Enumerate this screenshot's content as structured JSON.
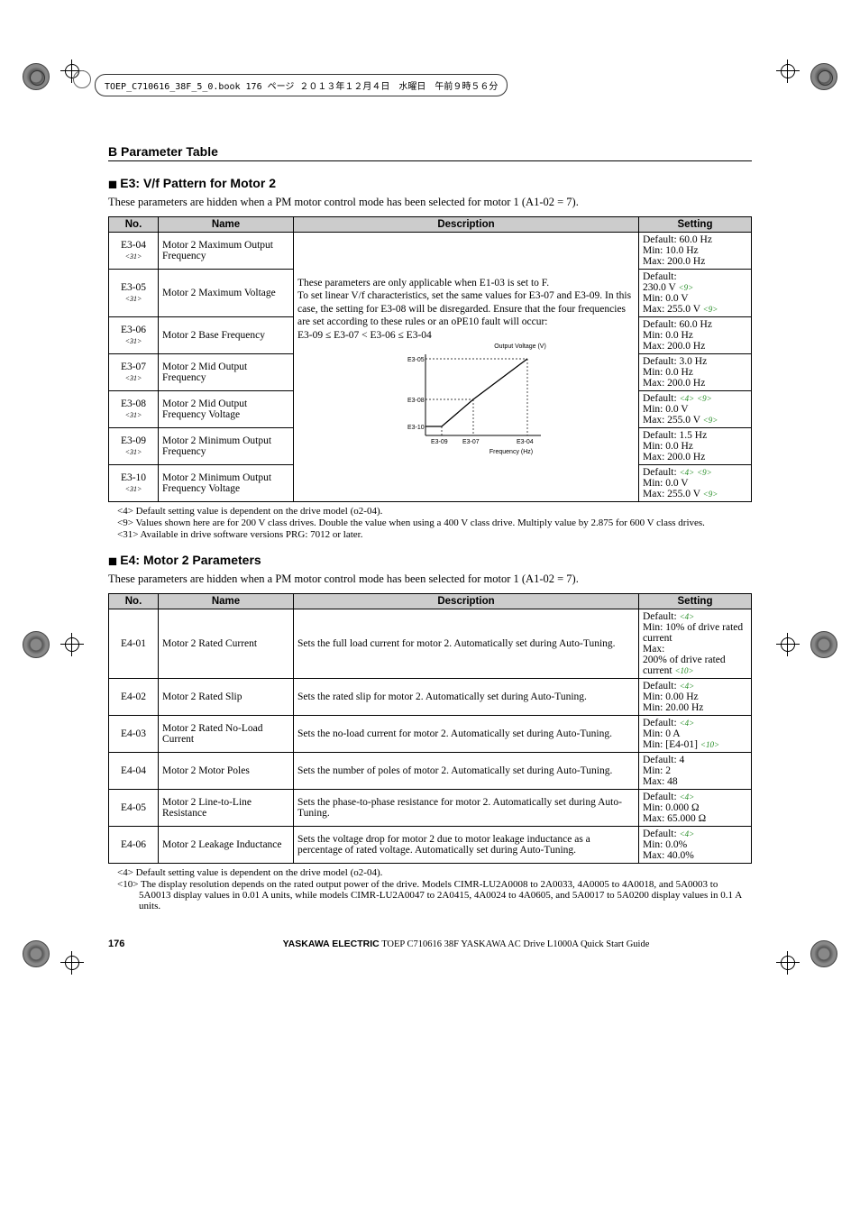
{
  "bookHeader": "TOEP_C710616_38F_5_0.book  176 ページ  ２０１３年１２月４日　水曜日　午前９時５６分",
  "sectionHeader": "B  Parameter Table",
  "e3": {
    "title": "E3: V/f Pattern for Motor 2",
    "intro": "These parameters are hidden when a PM motor control mode has been selected for motor 1 (A1-02 = 7).",
    "cols": [
      "No.",
      "Name",
      "Description",
      "Setting"
    ],
    "descTop": "These parameters are only applicable when E1-03 is set to F.\nTo set linear V/f characteristics, set the same values for E3-07 and E3-09. In this case, the setting for E3-08 will be disregarded. Ensure that the four frequencies are set according to these rules or an oPE10 fault will occur:\nE3-09 ≤ E3-07 < E3-06 ≤ E3-04",
    "diagram": {
      "ylabel": "Output Voltage (V)",
      "xlabel": "Frequency (Hz)",
      "y": [
        "E3-05",
        "E3-08",
        "E3-10"
      ],
      "x": [
        "E3-09",
        "E3-07",
        "E3-04"
      ]
    },
    "rows": [
      {
        "no": "E3-04",
        "sub": "<31>",
        "name": "Motor 2 Maximum Output Frequency",
        "set": "Default: 60.0 Hz\nMin: 10.0 Hz\nMax: 200.0 Hz"
      },
      {
        "no": "E3-05",
        "sub": "<31>",
        "name": "Motor 2 Maximum Voltage",
        "set": "Default: \n230.0 V <9>\nMin: 0.0 V\nMax: 255.0 V <9>"
      },
      {
        "no": "E3-06",
        "sub": "<31>",
        "name": "Motor 2 Base Frequency",
        "set": "Default: 60.0 Hz\nMin: 0.0 Hz\nMax: 200.0 Hz"
      },
      {
        "no": "E3-07",
        "sub": "<31>",
        "name": "Motor 2 Mid Output Frequency",
        "set": "Default: 3.0 Hz\nMin: 0.0 Hz\nMax: 200.0 Hz"
      },
      {
        "no": "E3-08",
        "sub": "<31>",
        "name": "Motor 2 Mid Output Frequency Voltage",
        "set": "Default:  <4> <9>\nMin: 0.0 V\nMax: 255.0 V <9>"
      },
      {
        "no": "E3-09",
        "sub": "<31>",
        "name": "Motor 2 Minimum Output Frequency",
        "set": "Default: 1.5 Hz\nMin: 0.0 Hz\nMax: 200.0 Hz"
      },
      {
        "no": "E3-10",
        "sub": "<31>",
        "name": "Motor 2 Minimum Output Frequency Voltage",
        "set": "Default:  <4> <9>\nMin: 0.0 V\nMax: 255.0 V <9>"
      }
    ],
    "notes": [
      "<4> Default setting value is dependent on the drive model (o2-04).",
      "<9> Values shown here are for 200 V class drives. Double the value when using a 400 V class drive. Multiply value by 2.875 for 600 V class drives.",
      "<31> Available in drive software versions PRG: 7012 or later."
    ]
  },
  "e4": {
    "title": "E4: Motor 2 Parameters",
    "intro": "These parameters are hidden when a PM motor control mode has been selected for motor 1 (A1-02 = 7).",
    "cols": [
      "No.",
      "Name",
      "Description",
      "Setting"
    ],
    "rows": [
      {
        "no": "E4-01",
        "name": "Motor 2 Rated Current",
        "desc": "Sets the full load current for motor 2. Automatically set during Auto-Tuning.",
        "set": "Default:  <4>\nMin: 10% of drive rated current\nMax:\n200% of drive rated current  <10>"
      },
      {
        "no": "E4-02",
        "name": "Motor 2 Rated Slip",
        "desc": "Sets the rated slip for motor 2. Automatically set during Auto-Tuning.",
        "set": "Default:  <4>\nMin: 0.00 Hz\nMin: 20.00 Hz"
      },
      {
        "no": "E4-03",
        "name": "Motor 2 Rated No-Load Current",
        "desc": "Sets the no-load current for motor 2. Automatically set during Auto-Tuning.",
        "set": "Default:  <4>\nMin: 0 A\nMin: [E4-01]  <10>"
      },
      {
        "no": "E4-04",
        "name": "Motor 2 Motor Poles",
        "desc": "Sets the number of poles of motor 2. Automatically set during Auto-Tuning.",
        "set": "Default: 4\nMin: 2\nMax: 48"
      },
      {
        "no": "E4-05",
        "name": "Motor 2 Line-to-Line Resistance",
        "desc": "Sets the phase-to-phase resistance for motor 2. Automatically set during Auto-Tuning.",
        "set": "Default:  <4>\nMin: 0.000 Ω\nMax: 65.000 Ω"
      },
      {
        "no": "E4-06",
        "name": "Motor 2 Leakage Inductance",
        "desc": "Sets the voltage drop for motor 2 due to motor leakage inductance as a percentage of rated voltage. Automatically set during Auto-Tuning.",
        "set": "Default:  <4>\nMin: 0.0%\nMax: 40.0%"
      }
    ],
    "notes": [
      "<4> Default setting value is dependent on the drive model (o2-04).",
      "<10> The display resolution depends on the rated output power of the drive. Models CIMR-LU2A0008 to 2A0033, 4A0005 to 4A0018, and 5A0003 to 5A0013 display values in 0.01 A units, while models CIMR-LU2A0047 to 2A0415, 4A0024 to 4A0605, and 5A0017 to 5A0200 display values in 0.1 A units."
    ]
  },
  "footer": {
    "page": "176",
    "text": "YASKAWA ELECTRIC TOEP C710616 38F YASKAWA AC Drive L1000A Quick Start Guide"
  }
}
